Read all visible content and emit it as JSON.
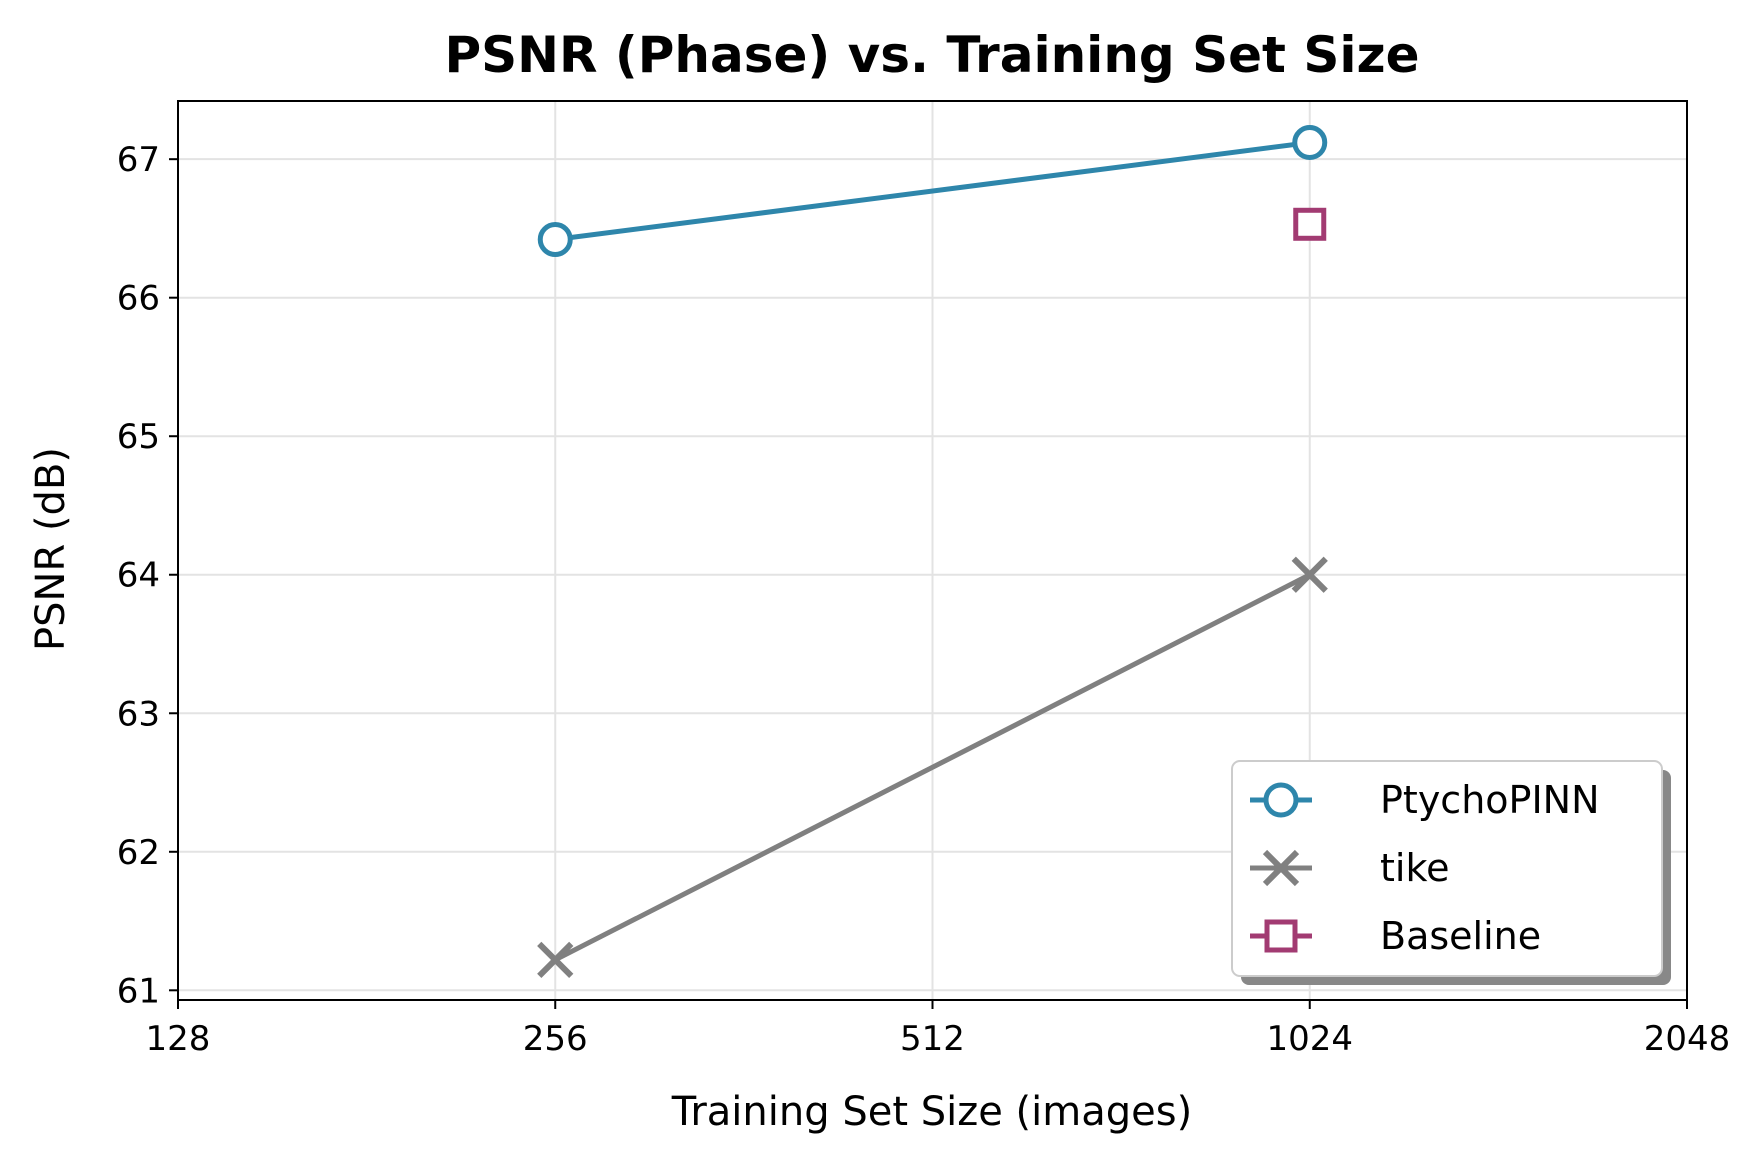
{
  "chart_data": {
    "type": "line",
    "title": "PSNR (Phase) vs. Training Set Size",
    "xlabel": "Training Set Size (images)",
    "ylabel": "PSNR (dB)",
    "x_scale": "log2",
    "xlim": [
      128,
      2048
    ],
    "ylim": [
      60.93,
      67.42
    ],
    "x_ticks": [
      128,
      256,
      512,
      1024,
      2048
    ],
    "x_tick_labels": [
      "128",
      "256",
      "512",
      "1024",
      "2048"
    ],
    "y_ticks": [
      61,
      62,
      63,
      64,
      65,
      66,
      67
    ],
    "y_tick_labels": [
      "61",
      "62",
      "63",
      "64",
      "65",
      "66",
      "67"
    ],
    "grid": true,
    "legend_position": "lower-right",
    "series": [
      {
        "name": "PtychoPINN",
        "color": "#2e86ab",
        "marker": "circle",
        "line": true,
        "x": [
          256,
          1024
        ],
        "y": [
          66.42,
          67.12
        ]
      },
      {
        "name": "tike",
        "color": "#808080",
        "marker": "x",
        "line": true,
        "x": [
          256,
          1024
        ],
        "y": [
          61.22,
          64.0
        ]
      },
      {
        "name": "Baseline",
        "color": "#a23b72",
        "marker": "square",
        "line": false,
        "x": [
          1024
        ],
        "y": [
          66.53
        ]
      }
    ]
  }
}
